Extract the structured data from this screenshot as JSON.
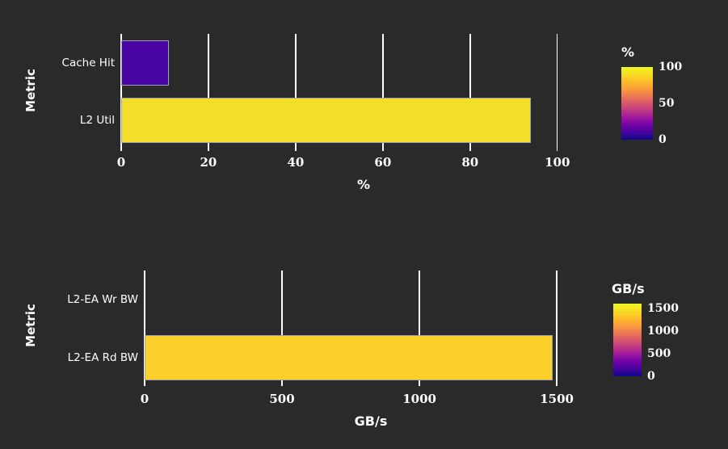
{
  "app": {
    "colors": {
      "background": "#2a2a2a",
      "text": "#ffffff",
      "gridline": "#ffffff",
      "bar_border": "#a39fb4"
    }
  },
  "colormap": {
    "name": "plasma",
    "stops": [
      [
        "#0d0887",
        0
      ],
      [
        "#46039f",
        10
      ],
      [
        "#7201a8",
        20
      ],
      [
        "#9c179e",
        30
      ],
      [
        "#bd3786",
        40
      ],
      [
        "#d8576b",
        50
      ],
      [
        "#ed7953",
        60
      ],
      [
        "#fa9e3b",
        70
      ],
      [
        "#fdc326",
        82
      ],
      [
        "#f0f921",
        100
      ]
    ]
  },
  "chart_data": [
    {
      "type": "bar",
      "orientation": "horizontal",
      "title": "",
      "ylabel": "Metric",
      "xlabel": "%",
      "categories": [
        "Cache Hit",
        "L2 Util"
      ],
      "values": [
        11,
        94
      ],
      "bar_colors": [
        "#4a06a4",
        "#f3df29"
      ],
      "xticks": [
        0,
        20,
        40,
        60,
        80,
        100
      ],
      "xlim": [
        0,
        101.9
      ],
      "grid": true,
      "colorbar": {
        "title": "%",
        "ticks": [
          100,
          50,
          0
        ],
        "min": 0,
        "max": 100
      }
    },
    {
      "type": "bar",
      "orientation": "horizontal",
      "title": "",
      "ylabel": "Metric",
      "xlabel": "GB/s",
      "categories": [
        "L2-EA Wr BW",
        "L2-EA Rd BW"
      ],
      "values": [
        0,
        1485
      ],
      "bar_colors": [
        "#0d0887",
        "#fbd02b"
      ],
      "xticks": [
        0,
        500,
        1000,
        1500
      ],
      "xlim": [
        0,
        1529
      ],
      "grid": true,
      "colorbar": {
        "title": "GB/s",
        "ticks": [
          1500,
          1000,
          500,
          0
        ],
        "min": 0,
        "max": 1600
      }
    }
  ]
}
